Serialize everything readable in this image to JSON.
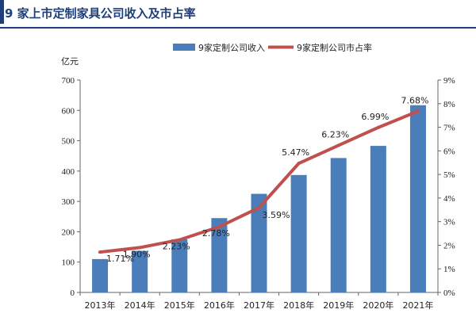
{
  "header": {
    "title": "9 家上市定制家具公司收入及市占率"
  },
  "chart_data": {
    "type": "bar",
    "categories": [
      "2013年",
      "2014年",
      "2015年",
      "2016年",
      "2017年",
      "2018年",
      "2019年",
      "2020年",
      "2021年"
    ],
    "ylabel": "亿元",
    "ylim": [
      0,
      700
    ],
    "y_ticks": [
      "0",
      "100",
      "200",
      "300",
      "400",
      "500",
      "600",
      "700"
    ],
    "y2lim": [
      0,
      9
    ],
    "y2_ticks": [
      "0%",
      "1%",
      "2%",
      "3%",
      "4%",
      "5%",
      "6%",
      "7%",
      "8%",
      "9%"
    ],
    "grid": false,
    "legend_position": "top",
    "series": [
      {
        "name": "9家定制公司收入",
        "type": "bar",
        "axis": "left",
        "color": "#4a7ebb",
        "values": [
          110,
          137,
          175,
          245,
          325,
          387,
          443,
          483,
          617
        ]
      },
      {
        "name": "9家定制公司市占率",
        "type": "line",
        "axis": "right",
        "color": "#c0504d",
        "values": [
          1.71,
          1.9,
          2.23,
          2.78,
          3.59,
          5.47,
          6.23,
          6.99,
          7.68
        ],
        "labels": [
          "1.71%",
          "1.90%",
          "2.23%",
          "2.78%",
          "3.59%",
          "5.47%",
          "6.23%",
          "6.99%",
          "7.68%"
        ]
      }
    ]
  }
}
